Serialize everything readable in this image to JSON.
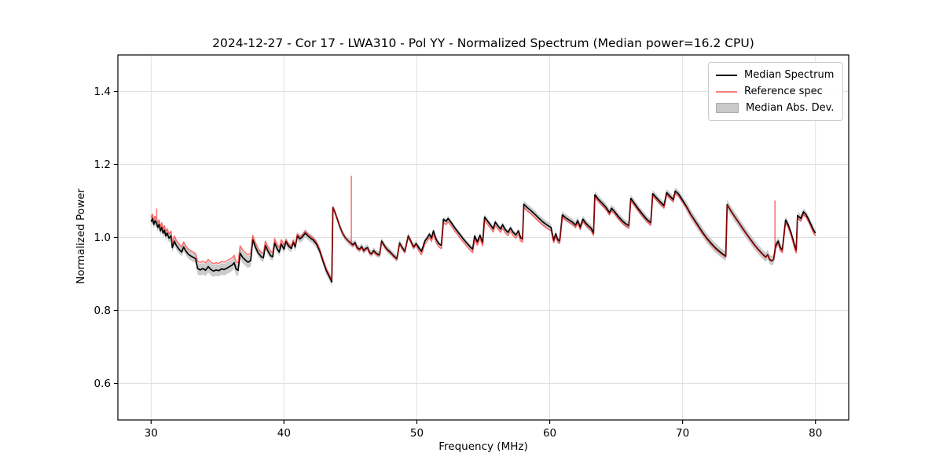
{
  "figure": {
    "title": "2024-12-27 - Cor 17 - LWA310 - Pol YY - Normalized Spectrum (Median power=16.2 CPU)",
    "xlabel": "Frequency (MHz)",
    "ylabel": "Normalized Power"
  },
  "legend": {
    "items": [
      {
        "label": "Median Spectrum",
        "kind": "line",
        "color": "#000000"
      },
      {
        "label": "Reference spec",
        "kind": "line",
        "color": "#ff7d7d"
      },
      {
        "label": "Median Abs. Dev.",
        "kind": "patch",
        "color": "#c9c9c9",
        "edge": "#ababab"
      }
    ]
  },
  "chart_data": {
    "type": "line",
    "title": "2024-12-27 - Cor 17 - LWA310 - Pol YY - Normalized Spectrum (Median power=16.2 CPU)",
    "xlabel": "Frequency (MHz)",
    "ylabel": "Normalized Power",
    "xlim": [
      27.5,
      82.5
    ],
    "ylim": [
      0.5,
      1.5
    ],
    "grid": true,
    "legend_position": "upper right",
    "x_ticks": [
      30,
      40,
      50,
      60,
      70,
      80
    ],
    "y_ticks": [
      0.6,
      0.8,
      1.0,
      1.2,
      1.4
    ],
    "y_tick_labels": [
      "0.6",
      "0.8",
      "1.0",
      "1.2",
      "1.4"
    ],
    "x_tick_labels": [
      "30",
      "40",
      "50",
      "60",
      "70",
      "80"
    ],
    "colors": {
      "median": "#000000",
      "reference": "rgba(255,0,0,0.55)",
      "mad_band": "#cbcbcb",
      "grid": "#e0e0e0",
      "spine": "#000000"
    },
    "series_names": [
      "Median Spectrum",
      "Reference spec",
      "Median Abs. Dev."
    ],
    "median_points": [
      [
        30.0,
        1.043
      ],
      [
        30.1,
        1.052
      ],
      [
        30.2,
        1.036
      ],
      [
        30.3,
        1.046
      ],
      [
        30.4,
        1.04
      ],
      [
        30.5,
        1.028
      ],
      [
        30.6,
        1.036
      ],
      [
        30.7,
        1.018
      ],
      [
        30.8,
        1.028
      ],
      [
        30.9,
        1.012
      ],
      [
        31.0,
        1.02
      ],
      [
        31.1,
        1.004
      ],
      [
        31.2,
        1.012
      ],
      [
        31.35,
        0.998
      ],
      [
        31.5,
        1.005
      ],
      [
        31.6,
        0.972
      ],
      [
        31.75,
        0.99
      ],
      [
        31.9,
        0.978
      ],
      [
        32.1,
        0.968
      ],
      [
        32.3,
        0.96
      ],
      [
        32.45,
        0.974
      ],
      [
        32.6,
        0.964
      ],
      [
        32.8,
        0.954
      ],
      [
        33.0,
        0.949
      ],
      [
        33.2,
        0.945
      ],
      [
        33.35,
        0.942
      ],
      [
        33.5,
        0.915
      ],
      [
        33.7,
        0.911
      ],
      [
        33.9,
        0.915
      ],
      [
        34.1,
        0.91
      ],
      [
        34.3,
        0.92
      ],
      [
        34.5,
        0.912
      ],
      [
        34.7,
        0.908
      ],
      [
        34.9,
        0.911
      ],
      [
        35.1,
        0.909
      ],
      [
        35.3,
        0.914
      ],
      [
        35.5,
        0.912
      ],
      [
        35.7,
        0.916
      ],
      [
        35.9,
        0.92
      ],
      [
        36.1,
        0.924
      ],
      [
        36.25,
        0.931
      ],
      [
        36.4,
        0.913
      ],
      [
        36.55,
        0.91
      ],
      [
        36.7,
        0.957
      ],
      [
        36.9,
        0.945
      ],
      [
        37.1,
        0.938
      ],
      [
        37.3,
        0.932
      ],
      [
        37.5,
        0.937
      ],
      [
        37.65,
        0.994
      ],
      [
        37.85,
        0.974
      ],
      [
        38.05,
        0.958
      ],
      [
        38.3,
        0.947
      ],
      [
        38.45,
        0.944
      ],
      [
        38.6,
        0.978
      ],
      [
        38.8,
        0.962
      ],
      [
        39.0,
        0.95
      ],
      [
        39.15,
        0.947
      ],
      [
        39.3,
        0.985
      ],
      [
        39.5,
        0.968
      ],
      [
        39.65,
        0.96
      ],
      [
        39.8,
        0.982
      ],
      [
        40.0,
        0.968
      ],
      [
        40.15,
        0.989
      ],
      [
        40.35,
        0.976
      ],
      [
        40.55,
        0.97
      ],
      [
        40.7,
        0.987
      ],
      [
        40.85,
        0.974
      ],
      [
        41.0,
        1.004
      ],
      [
        41.2,
        0.996
      ],
      [
        41.4,
        1.002
      ],
      [
        41.6,
        1.012
      ],
      [
        41.8,
        1.004
      ],
      [
        42.0,
        0.998
      ],
      [
        42.2,
        0.993
      ],
      [
        42.45,
        0.982
      ],
      [
        42.7,
        0.962
      ],
      [
        42.95,
        0.934
      ],
      [
        43.2,
        0.908
      ],
      [
        43.45,
        0.89
      ],
      [
        43.6,
        0.878
      ],
      [
        43.68,
        1.082
      ],
      [
        43.8,
        1.073
      ],
      [
        44.0,
        1.052
      ],
      [
        44.2,
        1.03
      ],
      [
        44.4,
        1.012
      ],
      [
        44.6,
        1.0
      ],
      [
        44.8,
        0.992
      ],
      [
        45.0,
        0.985
      ],
      [
        45.2,
        0.98
      ],
      [
        45.35,
        0.986
      ],
      [
        45.5,
        0.972
      ],
      [
        45.7,
        0.968
      ],
      [
        45.85,
        0.975
      ],
      [
        46.0,
        0.964
      ],
      [
        46.15,
        0.97
      ],
      [
        46.3,
        0.972
      ],
      [
        46.45,
        0.958
      ],
      [
        46.6,
        0.956
      ],
      [
        46.75,
        0.964
      ],
      [
        46.9,
        0.958
      ],
      [
        47.05,
        0.954
      ],
      [
        47.2,
        0.953
      ],
      [
        47.35,
        0.99
      ],
      [
        47.6,
        0.975
      ],
      [
        47.8,
        0.966
      ],
      [
        48.0,
        0.96
      ],
      [
        48.25,
        0.95
      ],
      [
        48.5,
        0.942
      ],
      [
        48.7,
        0.985
      ],
      [
        48.9,
        0.972
      ],
      [
        49.1,
        0.962
      ],
      [
        49.35,
        1.004
      ],
      [
        49.55,
        0.99
      ],
      [
        49.75,
        0.974
      ],
      [
        49.95,
        0.983
      ],
      [
        50.15,
        0.972
      ],
      [
        50.35,
        0.962
      ],
      [
        50.6,
        0.99
      ],
      [
        50.8,
        1.0
      ],
      [
        50.95,
        1.009
      ],
      [
        51.1,
        0.998
      ],
      [
        51.25,
        1.018
      ],
      [
        51.45,
        0.995
      ],
      [
        51.65,
        0.983
      ],
      [
        51.85,
        0.978
      ],
      [
        52.0,
        1.05
      ],
      [
        52.2,
        1.044
      ],
      [
        52.35,
        1.052
      ],
      [
        52.6,
        1.04
      ],
      [
        52.9,
        1.024
      ],
      [
        53.2,
        1.01
      ],
      [
        53.5,
        0.996
      ],
      [
        53.8,
        0.983
      ],
      [
        54.05,
        0.973
      ],
      [
        54.2,
        0.968
      ],
      [
        54.35,
        1.004
      ],
      [
        54.55,
        0.988
      ],
      [
        54.75,
        1.006
      ],
      [
        54.95,
        0.986
      ],
      [
        55.1,
        1.056
      ],
      [
        55.3,
        1.046
      ],
      [
        55.55,
        1.034
      ],
      [
        55.75,
        1.024
      ],
      [
        55.9,
        1.042
      ],
      [
        56.1,
        1.032
      ],
      [
        56.3,
        1.023
      ],
      [
        56.45,
        1.035
      ],
      [
        56.65,
        1.022
      ],
      [
        56.85,
        1.014
      ],
      [
        57.05,
        1.026
      ],
      [
        57.25,
        1.014
      ],
      [
        57.45,
        1.007
      ],
      [
        57.65,
        1.018
      ],
      [
        57.8,
        1.0
      ],
      [
        57.95,
        0.996
      ],
      [
        58.05,
        1.091
      ],
      [
        58.3,
        1.082
      ],
      [
        58.6,
        1.073
      ],
      [
        58.9,
        1.063
      ],
      [
        59.2,
        1.052
      ],
      [
        59.5,
        1.042
      ],
      [
        59.8,
        1.034
      ],
      [
        60.1,
        1.027
      ],
      [
        60.3,
        0.992
      ],
      [
        60.45,
        1.01
      ],
      [
        60.6,
        0.994
      ],
      [
        60.75,
        0.99
      ],
      [
        60.95,
        1.062
      ],
      [
        61.2,
        1.054
      ],
      [
        61.45,
        1.048
      ],
      [
        61.7,
        1.042
      ],
      [
        61.95,
        1.034
      ],
      [
        62.1,
        1.046
      ],
      [
        62.3,
        1.028
      ],
      [
        62.5,
        1.05
      ],
      [
        62.7,
        1.04
      ],
      [
        62.9,
        1.032
      ],
      [
        63.1,
        1.026
      ],
      [
        63.3,
        1.012
      ],
      [
        63.4,
        1.117
      ],
      [
        63.65,
        1.105
      ],
      [
        63.95,
        1.094
      ],
      [
        64.25,
        1.082
      ],
      [
        64.5,
        1.068
      ],
      [
        64.65,
        1.08
      ],
      [
        64.9,
        1.07
      ],
      [
        65.15,
        1.058
      ],
      [
        65.45,
        1.046
      ],
      [
        65.7,
        1.038
      ],
      [
        65.95,
        1.032
      ],
      [
        66.1,
        1.107
      ],
      [
        66.4,
        1.092
      ],
      [
        66.7,
        1.077
      ],
      [
        67.0,
        1.063
      ],
      [
        67.3,
        1.05
      ],
      [
        67.6,
        1.04
      ],
      [
        67.75,
        1.12
      ],
      [
        68.0,
        1.11
      ],
      [
        68.3,
        1.098
      ],
      [
        68.6,
        1.087
      ],
      [
        68.8,
        1.123
      ],
      [
        69.05,
        1.113
      ],
      [
        69.3,
        1.104
      ],
      [
        69.45,
        1.127
      ],
      [
        69.7,
        1.119
      ],
      [
        70.0,
        1.102
      ],
      [
        70.3,
        1.084
      ],
      [
        70.6,
        1.064
      ],
      [
        70.9,
        1.047
      ],
      [
        71.2,
        1.031
      ],
      [
        71.5,
        1.014
      ],
      [
        71.8,
        0.999
      ],
      [
        72.1,
        0.986
      ],
      [
        72.4,
        0.974
      ],
      [
        72.7,
        0.964
      ],
      [
        73.0,
        0.955
      ],
      [
        73.25,
        0.949
      ],
      [
        73.35,
        1.09
      ],
      [
        73.6,
        1.075
      ],
      [
        73.9,
        1.058
      ],
      [
        74.2,
        1.042
      ],
      [
        74.5,
        1.026
      ],
      [
        74.8,
        1.01
      ],
      [
        75.1,
        0.995
      ],
      [
        75.4,
        0.98
      ],
      [
        75.7,
        0.967
      ],
      [
        76.0,
        0.955
      ],
      [
        76.25,
        0.946
      ],
      [
        76.4,
        0.953
      ],
      [
        76.55,
        0.94
      ],
      [
        76.7,
        0.936
      ],
      [
        76.85,
        0.94
      ],
      [
        77.0,
        0.978
      ],
      [
        77.2,
        0.99
      ],
      [
        77.35,
        0.972
      ],
      [
        77.5,
        0.966
      ],
      [
        77.75,
        1.048
      ],
      [
        77.95,
        1.034
      ],
      [
        78.15,
        1.014
      ],
      [
        78.3,
        0.995
      ],
      [
        78.45,
        0.975
      ],
      [
        78.55,
        0.965
      ],
      [
        78.65,
        1.06
      ],
      [
        78.9,
        1.052
      ],
      [
        79.1,
        1.07
      ],
      [
        79.3,
        1.062
      ],
      [
        79.5,
        1.048
      ],
      [
        79.7,
        1.032
      ],
      [
        79.85,
        1.02
      ],
      [
        80.0,
        1.012
      ]
    ],
    "reference_offset_segments": [
      [
        27.5,
        31.5,
        0.012
      ],
      [
        31.5,
        33.45,
        0.014
      ],
      [
        33.45,
        37.55,
        0.02
      ],
      [
        37.55,
        40.0,
        0.012
      ],
      [
        40.0,
        43.64,
        0.005
      ],
      [
        43.64,
        45.0,
        0.0
      ],
      [
        45.0,
        50.0,
        -0.003
      ],
      [
        50.0,
        60.2,
        -0.009
      ],
      [
        60.2,
        70.0,
        -0.006
      ],
      [
        70.0,
        73.3,
        -0.003
      ],
      [
        73.3,
        76.9,
        -0.001
      ],
      [
        76.9,
        82.5,
        -0.007
      ]
    ],
    "reference_spikes": [
      {
        "f": 30.42,
        "top": 1.078
      },
      {
        "f": 45.07,
        "top": 1.168
      },
      {
        "f": 76.95,
        "top": 1.1
      }
    ],
    "mad_halfwidth_segments": [
      [
        27.5,
        33.45,
        0.012
      ],
      [
        33.45,
        37.5,
        0.016
      ],
      [
        37.5,
        43.6,
        0.011
      ],
      [
        43.6,
        50.0,
        0.009
      ],
      [
        50.0,
        58.0,
        0.007
      ],
      [
        58.0,
        70.0,
        0.01
      ],
      [
        70.0,
        77.0,
        0.013
      ],
      [
        77.0,
        82.5,
        0.01
      ]
    ]
  }
}
